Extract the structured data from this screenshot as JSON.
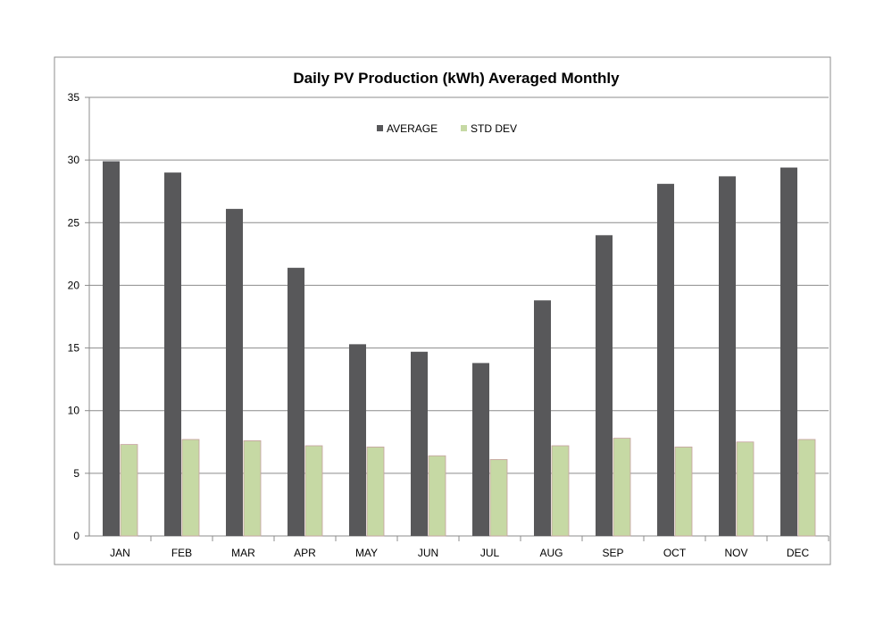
{
  "chart_data": {
    "type": "bar",
    "title": "Daily PV Production (kWh) Averaged Monthly",
    "xlabel": "",
    "ylabel": "",
    "ylim": [
      0,
      35
    ],
    "yticks": [
      0,
      5,
      10,
      15,
      20,
      25,
      30,
      35
    ],
    "grid": true,
    "legend_position": "top-center",
    "categories": [
      "JAN",
      "FEB",
      "MAR",
      "APR",
      "MAY",
      "JUN",
      "JUL",
      "AUG",
      "SEP",
      "OCT",
      "NOV",
      "DEC"
    ],
    "series": [
      {
        "name": "AVERAGE",
        "color": "#58585a",
        "values": [
          29.9,
          29.0,
          26.1,
          21.4,
          15.3,
          14.7,
          13.8,
          18.8,
          24.0,
          28.1,
          28.7,
          29.4
        ]
      },
      {
        "name": "STD DEV",
        "color": "#c6d9a4",
        "values": [
          7.3,
          7.7,
          7.6,
          7.2,
          7.1,
          6.4,
          6.1,
          7.2,
          7.8,
          7.1,
          7.5,
          7.7
        ]
      }
    ]
  }
}
